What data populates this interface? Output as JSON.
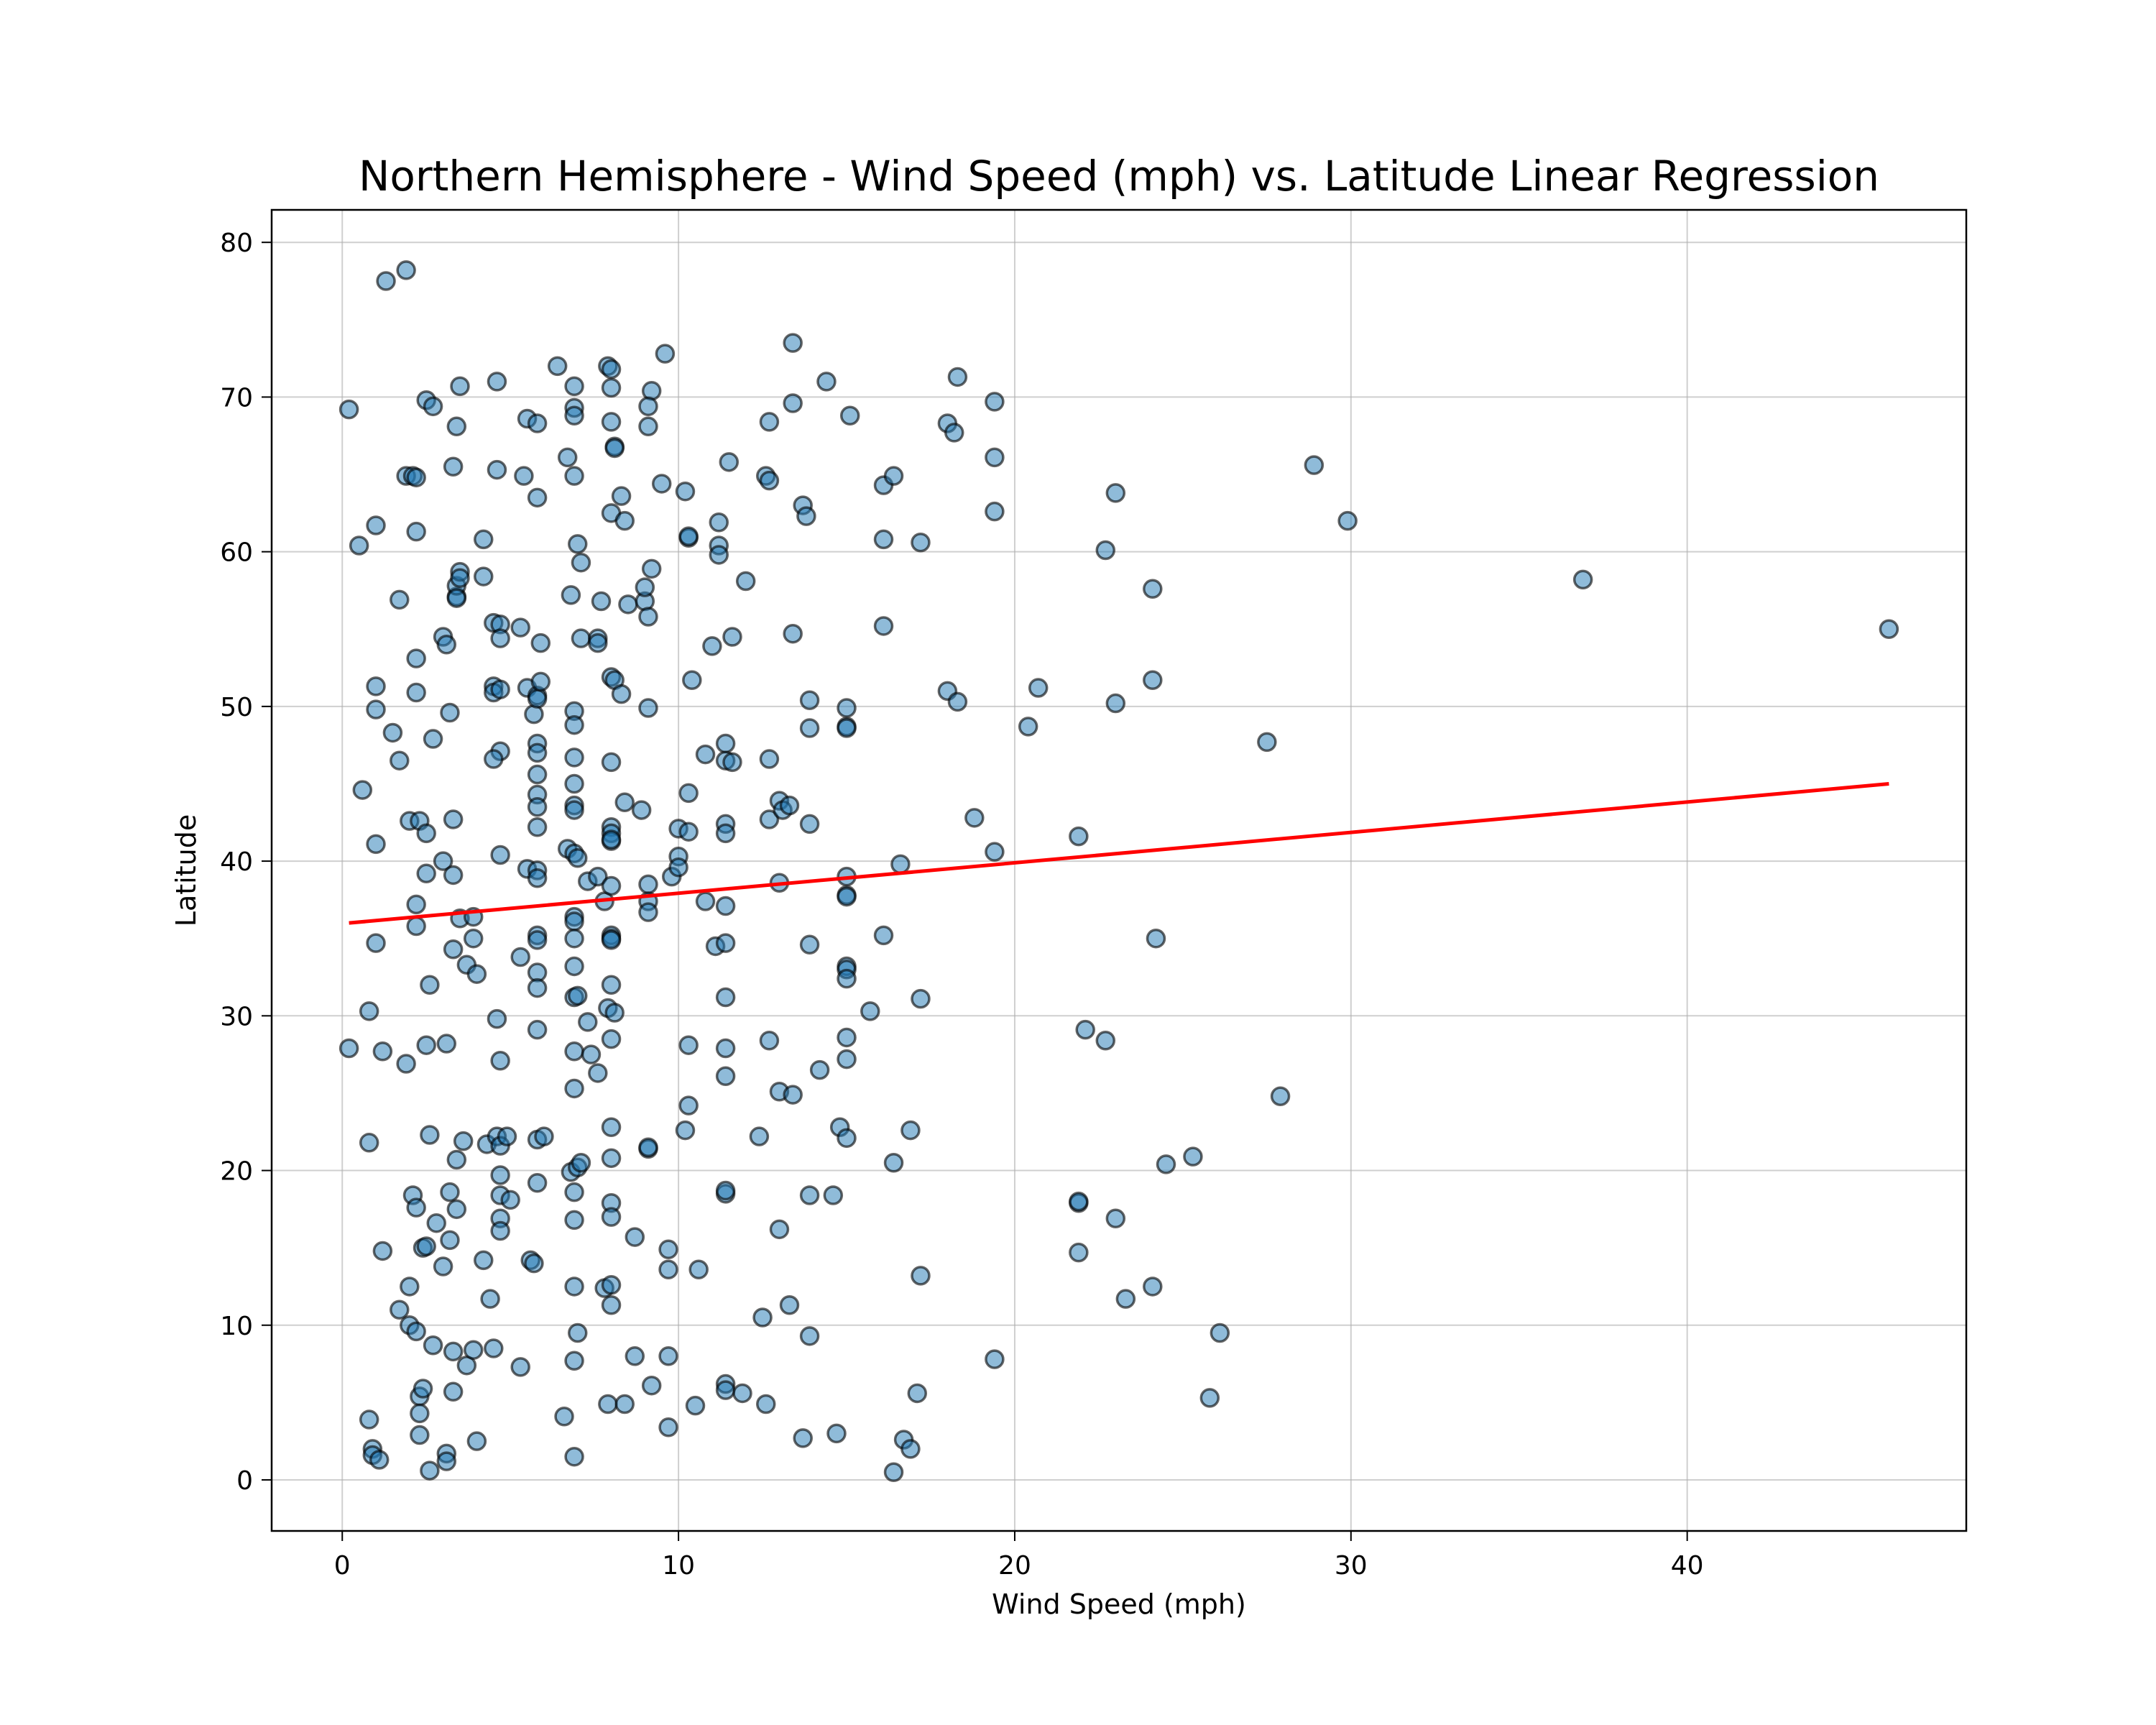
{
  "chart_data": {
    "type": "scatter",
    "title": "Northern Hemisphere - Wind Speed (mph) vs. Latitude Linear Regression",
    "xlabel": "Wind Speed (mph)",
    "ylabel": "Latitude",
    "xlim": [
      -2.1,
      48.3
    ],
    "ylim": [
      -3.3,
      82.1
    ],
    "xticks": [
      0,
      10,
      20,
      30,
      40
    ],
    "yticks": [
      0,
      10,
      20,
      30,
      40,
      50,
      60,
      70,
      80
    ],
    "grid": true,
    "colors": {
      "points": "#1f77b4",
      "regression": "#ff0000"
    },
    "regression": {
      "x": [
        0.2,
        46.0
      ],
      "y": [
        36.0,
        45.0
      ]
    },
    "points": [
      [
        0.2,
        69.2
      ],
      [
        1.3,
        77.5
      ],
      [
        1.9,
        78.2
      ],
      [
        0.5,
        60.4
      ],
      [
        1.0,
        61.7
      ],
      [
        1.9,
        64.9
      ],
      [
        2.1,
        64.9
      ],
      [
        2.2,
        64.8
      ],
      [
        2.2,
        61.3
      ],
      [
        2.5,
        69.8
      ],
      [
        2.7,
        69.4
      ],
      [
        3.5,
        70.7
      ],
      [
        3.4,
        68.1
      ],
      [
        3.3,
        65.5
      ],
      [
        4.6,
        71.0
      ],
      [
        4.6,
        65.3
      ],
      [
        5.4,
        64.9
      ],
      [
        5.5,
        68.6
      ],
      [
        5.8,
        68.3
      ],
      [
        5.8,
        63.5
      ],
      [
        6.4,
        72.0
      ],
      [
        6.9,
        70.7
      ],
      [
        6.9,
        69.3
      ],
      [
        6.9,
        68.8
      ],
      [
        6.7,
        66.1
      ],
      [
        6.9,
        64.9
      ],
      [
        7.0,
        60.5
      ],
      [
        7.1,
        59.3
      ],
      [
        7.9,
        72.0
      ],
      [
        8.0,
        71.8
      ],
      [
        8.0,
        70.6
      ],
      [
        8.0,
        68.4
      ],
      [
        8.1,
        66.8
      ],
      [
        8.1,
        66.7
      ],
      [
        8.0,
        62.5
      ],
      [
        8.3,
        63.6
      ],
      [
        8.4,
        62.0
      ],
      [
        9.6,
        72.8
      ],
      [
        9.2,
        70.4
      ],
      [
        9.1,
        69.4
      ],
      [
        9.1,
        68.1
      ],
      [
        9.5,
        64.4
      ],
      [
        10.2,
        63.9
      ],
      [
        10.3,
        60.9
      ],
      [
        10.3,
        61.0
      ],
      [
        11.2,
        61.9
      ],
      [
        11.2,
        60.4
      ],
      [
        11.2,
        59.8
      ],
      [
        11.5,
        65.8
      ],
      [
        12.6,
        64.9
      ],
      [
        12.7,
        64.6
      ],
      [
        12.7,
        68.4
      ],
      [
        13.4,
        73.5
      ],
      [
        13.4,
        69.6
      ],
      [
        13.7,
        63.0
      ],
      [
        13.8,
        62.3
      ],
      [
        14.4,
        71.0
      ],
      [
        15.1,
        68.8
      ],
      [
        16.1,
        64.3
      ],
      [
        16.4,
        64.9
      ],
      [
        16.1,
        60.8
      ],
      [
        17.2,
        60.6
      ],
      [
        18.0,
        68.3
      ],
      [
        18.3,
        71.3
      ],
      [
        18.2,
        67.7
      ],
      [
        19.4,
        69.7
      ],
      [
        19.4,
        66.1
      ],
      [
        19.4,
        62.6
      ],
      [
        22.7,
        60.1
      ],
      [
        23.0,
        63.8
      ],
      [
        24.1,
        57.6
      ],
      [
        28.9,
        65.6
      ],
      [
        29.9,
        62.0
      ],
      [
        36.9,
        58.2
      ],
      [
        46.0,
        55.0
      ],
      [
        1.7,
        56.9
      ],
      [
        3.4,
        57.1
      ],
      [
        3.4,
        57.8
      ],
      [
        3.5,
        58.7
      ],
      [
        3.5,
        58.3
      ],
      [
        3.4,
        57.0
      ],
      [
        4.2,
        58.4
      ],
      [
        4.2,
        60.8
      ],
      [
        4.5,
        55.4
      ],
      [
        4.7,
        55.3
      ],
      [
        4.7,
        54.4
      ],
      [
        3.0,
        54.5
      ],
      [
        3.1,
        54.0
      ],
      [
        2.2,
        53.1
      ],
      [
        5.3,
        55.1
      ],
      [
        5.9,
        54.1
      ],
      [
        7.1,
        54.4
      ],
      [
        7.6,
        54.4
      ],
      [
        7.6,
        54.1
      ],
      [
        7.7,
        56.8
      ],
      [
        6.8,
        57.2
      ],
      [
        8.5,
        56.6
      ],
      [
        9.0,
        56.8
      ],
      [
        9.0,
        57.7
      ],
      [
        9.2,
        58.9
      ],
      [
        9.1,
        55.8
      ],
      [
        11.0,
        53.9
      ],
      [
        11.6,
        54.5
      ],
      [
        12.0,
        58.1
      ],
      [
        13.4,
        54.7
      ],
      [
        16.1,
        55.2
      ],
      [
        1.0,
        51.3
      ],
      [
        1.0,
        49.8
      ],
      [
        1.5,
        48.3
      ],
      [
        1.7,
        46.5
      ],
      [
        2.2,
        50.9
      ],
      [
        2.7,
        47.9
      ],
      [
        3.2,
        49.6
      ],
      [
        4.5,
        51.3
      ],
      [
        4.5,
        50.9
      ],
      [
        4.7,
        51.1
      ],
      [
        4.7,
        47.1
      ],
      [
        4.5,
        46.6
      ],
      [
        5.5,
        51.2
      ],
      [
        5.7,
        49.5
      ],
      [
        5.8,
        50.7
      ],
      [
        5.8,
        50.5
      ],
      [
        5.9,
        51.6
      ],
      [
        5.8,
        47.6
      ],
      [
        5.8,
        47.0
      ],
      [
        5.8,
        45.6
      ],
      [
        6.9,
        49.7
      ],
      [
        6.9,
        48.8
      ],
      [
        6.9,
        46.7
      ],
      [
        6.9,
        45.0
      ],
      [
        8.0,
        51.9
      ],
      [
        8.1,
        51.7
      ],
      [
        8.3,
        50.8
      ],
      [
        8.0,
        46.4
      ],
      [
        9.1,
        49.9
      ],
      [
        10.4,
        51.7
      ],
      [
        10.8,
        46.9
      ],
      [
        11.4,
        47.6
      ],
      [
        11.4,
        46.5
      ],
      [
        11.6,
        46.4
      ],
      [
        12.7,
        46.6
      ],
      [
        13.9,
        50.4
      ],
      [
        13.9,
        48.6
      ],
      [
        15.0,
        49.9
      ],
      [
        15.0,
        48.7
      ],
      [
        15.0,
        48.6
      ],
      [
        18.0,
        51.0
      ],
      [
        18.3,
        50.3
      ],
      [
        20.4,
        48.7
      ],
      [
        20.7,
        51.2
      ],
      [
        23.0,
        50.2
      ],
      [
        24.1,
        51.7
      ],
      [
        27.5,
        47.7
      ],
      [
        0.6,
        44.6
      ],
      [
        1.0,
        41.1
      ],
      [
        2.0,
        42.6
      ],
      [
        2.3,
        42.6
      ],
      [
        2.5,
        41.8
      ],
      [
        3.0,
        40.0
      ],
      [
        3.3,
        42.7
      ],
      [
        4.7,
        40.4
      ],
      [
        5.8,
        44.3
      ],
      [
        5.8,
        43.5
      ],
      [
        5.8,
        42.2
      ],
      [
        6.7,
        40.8
      ],
      [
        6.9,
        43.6
      ],
      [
        6.9,
        43.3
      ],
      [
        6.9,
        40.5
      ],
      [
        7.0,
        40.2
      ],
      [
        8.0,
        42.2
      ],
      [
        8.0,
        41.8
      ],
      [
        8.0,
        41.3
      ],
      [
        8.0,
        41.4
      ],
      [
        8.4,
        43.8
      ],
      [
        8.9,
        43.3
      ],
      [
        10.0,
        42.1
      ],
      [
        10.0,
        40.3
      ],
      [
        10.3,
        44.4
      ],
      [
        10.3,
        41.9
      ],
      [
        11.4,
        42.4
      ],
      [
        11.4,
        41.8
      ],
      [
        12.7,
        42.7
      ],
      [
        13.0,
        43.9
      ],
      [
        13.1,
        43.3
      ],
      [
        13.3,
        43.6
      ],
      [
        13.9,
        42.4
      ],
      [
        18.8,
        42.8
      ],
      [
        19.4,
        40.6
      ],
      [
        21.9,
        41.6
      ],
      [
        0.8,
        30.3
      ],
      [
        1.0,
        34.7
      ],
      [
        2.2,
        37.2
      ],
      [
        2.2,
        35.8
      ],
      [
        2.5,
        39.2
      ],
      [
        2.6,
        32.0
      ],
      [
        3.3,
        39.1
      ],
      [
        3.3,
        34.3
      ],
      [
        3.5,
        36.3
      ],
      [
        3.7,
        33.3
      ],
      [
        3.9,
        35.0
      ],
      [
        4.0,
        32.7
      ],
      [
        3.9,
        36.4
      ],
      [
        4.6,
        29.8
      ],
      [
        5.3,
        33.8
      ],
      [
        5.5,
        39.5
      ],
      [
        5.8,
        39.4
      ],
      [
        5.8,
        38.9
      ],
      [
        5.8,
        35.2
      ],
      [
        5.8,
        34.9
      ],
      [
        5.8,
        32.8
      ],
      [
        5.8,
        31.8
      ],
      [
        7.3,
        38.7
      ],
      [
        7.6,
        39.0
      ],
      [
        7.8,
        37.4
      ],
      [
        6.9,
        36.4
      ],
      [
        6.9,
        36.1
      ],
      [
        6.9,
        35.0
      ],
      [
        6.9,
        33.2
      ],
      [
        6.9,
        31.2
      ],
      [
        7.0,
        31.3
      ],
      [
        7.3,
        29.6
      ],
      [
        8.0,
        38.4
      ],
      [
        8.0,
        35.2
      ],
      [
        8.0,
        35.0
      ],
      [
        8.0,
        34.9
      ],
      [
        8.0,
        32.0
      ],
      [
        7.9,
        30.5
      ],
      [
        8.1,
        30.2
      ],
      [
        9.1,
        38.5
      ],
      [
        9.1,
        37.4
      ],
      [
        9.1,
        36.7
      ],
      [
        9.8,
        39.0
      ],
      [
        10.0,
        39.6
      ],
      [
        10.8,
        37.4
      ],
      [
        11.1,
        34.5
      ],
      [
        11.4,
        37.1
      ],
      [
        11.4,
        34.7
      ],
      [
        11.4,
        31.2
      ],
      [
        13.0,
        38.6
      ],
      [
        13.9,
        34.6
      ],
      [
        15.0,
        39.0
      ],
      [
        15.0,
        37.8
      ],
      [
        15.0,
        37.7
      ],
      [
        15.0,
        33.2
      ],
      [
        15.0,
        33.0
      ],
      [
        15.0,
        32.4
      ],
      [
        15.7,
        30.3
      ],
      [
        16.1,
        35.2
      ],
      [
        16.6,
        39.8
      ],
      [
        17.2,
        31.1
      ],
      [
        24.2,
        35.0
      ],
      [
        0.2,
        27.9
      ],
      [
        1.2,
        27.7
      ],
      [
        1.9,
        26.9
      ],
      [
        2.5,
        28.1
      ],
      [
        3.1,
        28.2
      ],
      [
        4.7,
        27.1
      ],
      [
        5.8,
        29.1
      ],
      [
        6.9,
        27.7
      ],
      [
        6.9,
        25.3
      ],
      [
        7.4,
        27.5
      ],
      [
        7.6,
        26.3
      ],
      [
        8.0,
        28.5
      ],
      [
        10.3,
        28.1
      ],
      [
        10.3,
        24.2
      ],
      [
        11.4,
        27.9
      ],
      [
        11.4,
        26.1
      ],
      [
        12.7,
        28.4
      ],
      [
        13.0,
        25.1
      ],
      [
        13.4,
        24.9
      ],
      [
        14.2,
        26.5
      ],
      [
        15.0,
        28.6
      ],
      [
        15.0,
        27.2
      ],
      [
        22.1,
        29.1
      ],
      [
        22.7,
        28.4
      ],
      [
        27.9,
        24.8
      ],
      [
        0.8,
        21.8
      ],
      [
        2.6,
        22.3
      ],
      [
        3.4,
        20.7
      ],
      [
        3.6,
        21.9
      ],
      [
        4.3,
        21.7
      ],
      [
        4.6,
        22.2
      ],
      [
        4.7,
        21.6
      ],
      [
        4.9,
        22.2
      ],
      [
        5.8,
        22.0
      ],
      [
        6.0,
        22.2
      ],
      [
        6.8,
        19.9
      ],
      [
        7.0,
        20.2
      ],
      [
        7.1,
        20.5
      ],
      [
        8.0,
        22.8
      ],
      [
        8.0,
        20.8
      ],
      [
        9.1,
        21.4
      ],
      [
        9.1,
        21.5
      ],
      [
        10.2,
        22.6
      ],
      [
        12.4,
        22.2
      ],
      [
        14.8,
        22.8
      ],
      [
        15.0,
        22.1
      ],
      [
        16.4,
        20.5
      ],
      [
        16.9,
        22.6
      ],
      [
        24.5,
        20.4
      ],
      [
        25.3,
        20.9
      ],
      [
        2.1,
        18.4
      ],
      [
        2.2,
        17.6
      ],
      [
        2.4,
        15.0
      ],
      [
        2.5,
        15.1
      ],
      [
        2.8,
        16.6
      ],
      [
        3.2,
        18.6
      ],
      [
        3.2,
        15.5
      ],
      [
        3.4,
        17.5
      ],
      [
        4.7,
        19.7
      ],
      [
        4.7,
        18.4
      ],
      [
        4.7,
        16.9
      ],
      [
        4.7,
        16.1
      ],
      [
        5.0,
        18.1
      ],
      [
        5.8,
        19.2
      ],
      [
        6.9,
        18.6
      ],
      [
        6.9,
        16.8
      ],
      [
        8.0,
        17.9
      ],
      [
        8.0,
        17.0
      ],
      [
        8.7,
        15.7
      ],
      [
        11.4,
        18.5
      ],
      [
        11.4,
        18.7
      ],
      [
        13.0,
        16.2
      ],
      [
        13.9,
        18.4
      ],
      [
        14.6,
        18.4
      ],
      [
        21.9,
        17.9
      ],
      [
        21.9,
        18.0
      ],
      [
        23.0,
        16.9
      ],
      [
        1.2,
        14.8
      ],
      [
        1.7,
        11.0
      ],
      [
        2.0,
        12.5
      ],
      [
        2.0,
        10.0
      ],
      [
        2.2,
        9.6
      ],
      [
        2.7,
        8.7
      ],
      [
        3.0,
        13.8
      ],
      [
        3.3,
        8.3
      ],
      [
        3.7,
        7.4
      ],
      [
        3.9,
        8.4
      ],
      [
        4.2,
        14.2
      ],
      [
        4.4,
        11.7
      ],
      [
        4.5,
        8.5
      ],
      [
        5.6,
        14.2
      ],
      [
        5.7,
        14.0
      ],
      [
        5.3,
        7.3
      ],
      [
        6.9,
        12.5
      ],
      [
        7.0,
        9.5
      ],
      [
        6.9,
        7.7
      ],
      [
        7.8,
        12.4
      ],
      [
        8.0,
        12.6
      ],
      [
        8.0,
        11.3
      ],
      [
        8.7,
        8.0
      ],
      [
        9.7,
        14.9
      ],
      [
        9.7,
        13.6
      ],
      [
        9.7,
        8.0
      ],
      [
        10.6,
        13.6
      ],
      [
        12.5,
        10.5
      ],
      [
        13.3,
        11.3
      ],
      [
        13.9,
        9.3
      ],
      [
        17.2,
        13.2
      ],
      [
        19.4,
        7.8
      ],
      [
        21.9,
        14.7
      ],
      [
        23.3,
        11.7
      ],
      [
        24.1,
        12.5
      ],
      [
        26.1,
        9.5
      ],
      [
        0.8,
        3.9
      ],
      [
        0.9,
        2.0
      ],
      [
        0.9,
        1.6
      ],
      [
        1.1,
        1.3
      ],
      [
        2.3,
        5.4
      ],
      [
        2.3,
        4.3
      ],
      [
        2.3,
        2.9
      ],
      [
        2.4,
        5.9
      ],
      [
        2.6,
        0.6
      ],
      [
        3.1,
        1.7
      ],
      [
        3.1,
        1.2
      ],
      [
        3.3,
        5.7
      ],
      [
        4.0,
        2.5
      ],
      [
        6.6,
        4.1
      ],
      [
        6.9,
        1.5
      ],
      [
        7.9,
        4.9
      ],
      [
        8.4,
        4.9
      ],
      [
        9.2,
        6.1
      ],
      [
        9.7,
        3.4
      ],
      [
        10.5,
        4.8
      ],
      [
        11.4,
        6.2
      ],
      [
        11.4,
        5.8
      ],
      [
        11.9,
        5.6
      ],
      [
        12.6,
        4.9
      ],
      [
        13.7,
        2.7
      ],
      [
        14.7,
        3.0
      ],
      [
        16.4,
        0.5
      ],
      [
        16.7,
        2.6
      ],
      [
        16.9,
        2.0
      ],
      [
        17.1,
        5.6
      ],
      [
        25.8,
        5.3
      ]
    ]
  }
}
